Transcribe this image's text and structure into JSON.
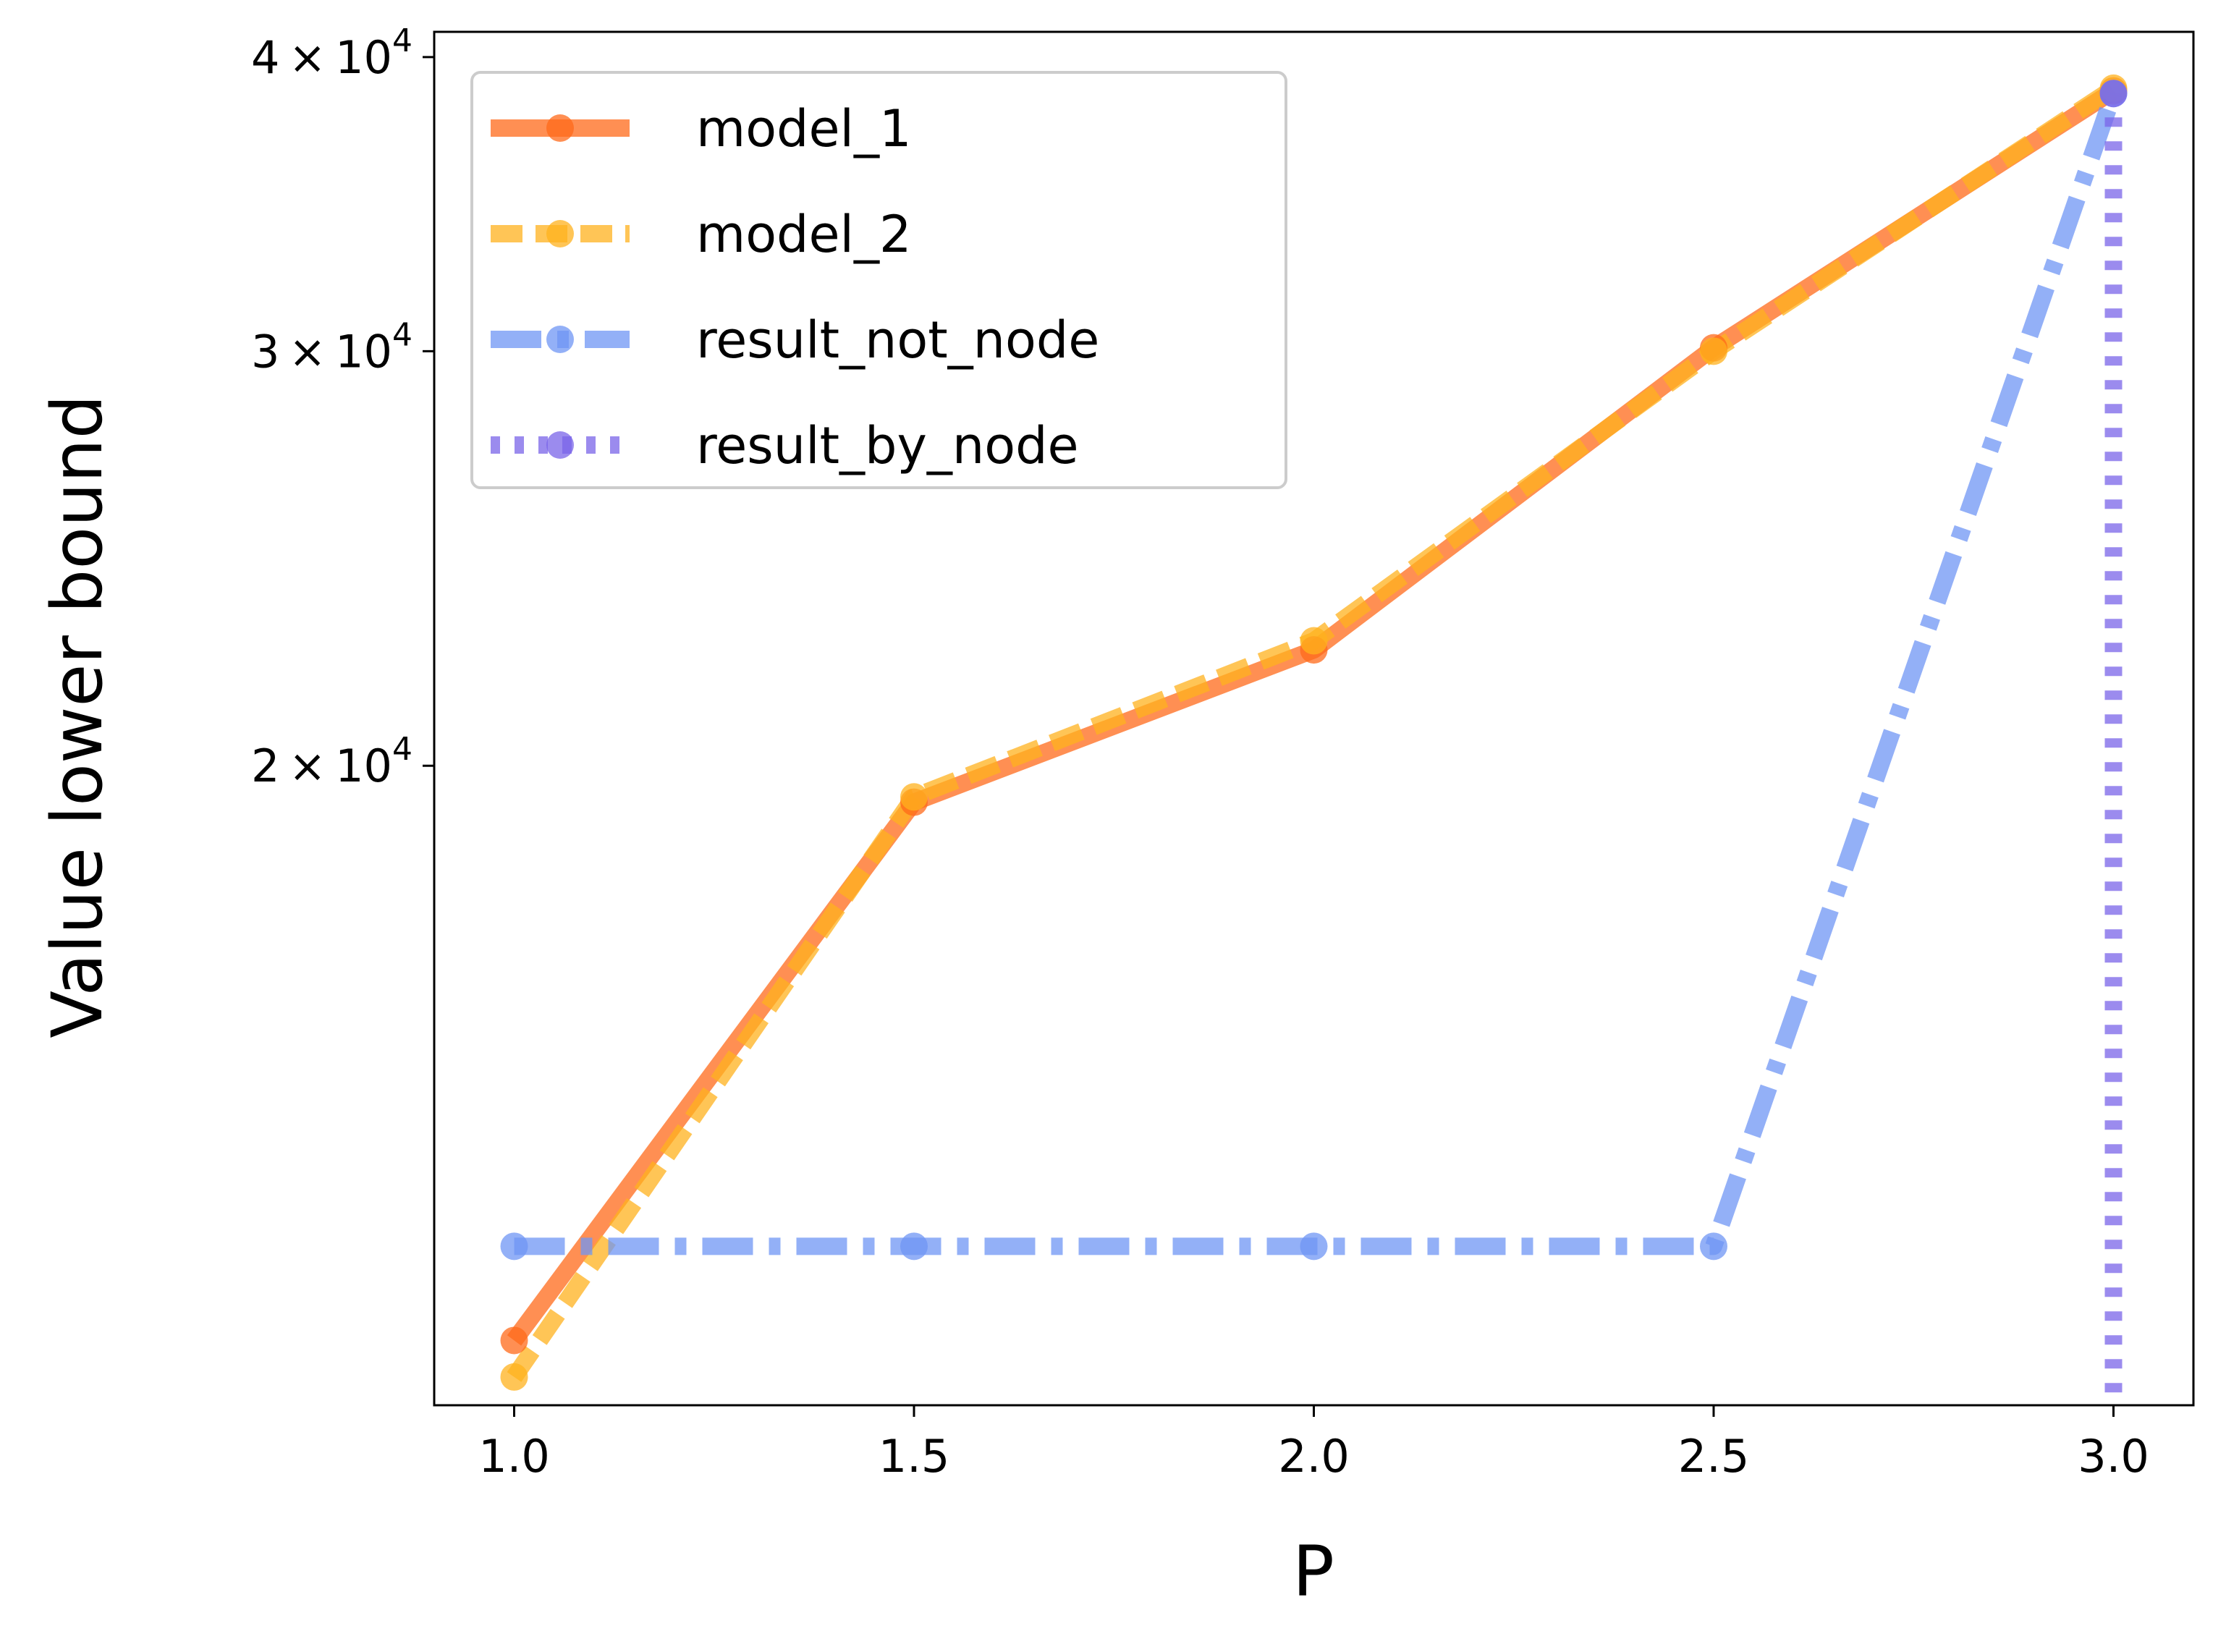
{
  "chart_data": {
    "type": "line",
    "title": "",
    "xlabel": "P",
    "ylabel": "Value lower bound",
    "x": [
      1.0,
      1.5,
      2.0,
      2.5,
      3.0
    ],
    "xlim": [
      0.9,
      3.1
    ],
    "ylim": [
      10700,
      41000
    ],
    "y_scale": "log",
    "grid": false,
    "legend_position": "top-left",
    "x_ticks": [
      {
        "value": 1.0,
        "label": "1.0"
      },
      {
        "value": 1.5,
        "label": "1.5"
      },
      {
        "value": 2.0,
        "label": "2.0"
      },
      {
        "value": 2.5,
        "label": "2.5"
      },
      {
        "value": 3.0,
        "label": "3.0"
      }
    ],
    "y_ticks": [
      {
        "value": 20000,
        "mantissa": "2",
        "label": "2 × 10^4"
      },
      {
        "value": 30000,
        "mantissa": "3",
        "label": "3 × 10^4"
      },
      {
        "value": 40000,
        "mantissa": "4",
        "label": "4 × 10^4"
      }
    ],
    "y_tick_base": "× 10",
    "y_tick_exponent": "4",
    "series": [
      {
        "name": "model_1",
        "color": "#FF6A1A",
        "style": "solid",
        "values": [
          11400,
          19300,
          22400,
          30100,
          38700
        ]
      },
      {
        "name": "model_2",
        "color": "#FFB21E",
        "style": "dashed",
        "values": [
          11000,
          19400,
          22600,
          30000,
          38800
        ]
      },
      {
        "name": "result_not_node",
        "color": "#6F96F4",
        "style": "dashdot",
        "values": [
          12500,
          12500,
          12500,
          12500,
          38600
        ]
      },
      {
        "name": "result_by_node",
        "color": "#7A64E8",
        "style": "dotted",
        "values": [
          null,
          null,
          null,
          null,
          38600
        ]
      }
    ]
  }
}
